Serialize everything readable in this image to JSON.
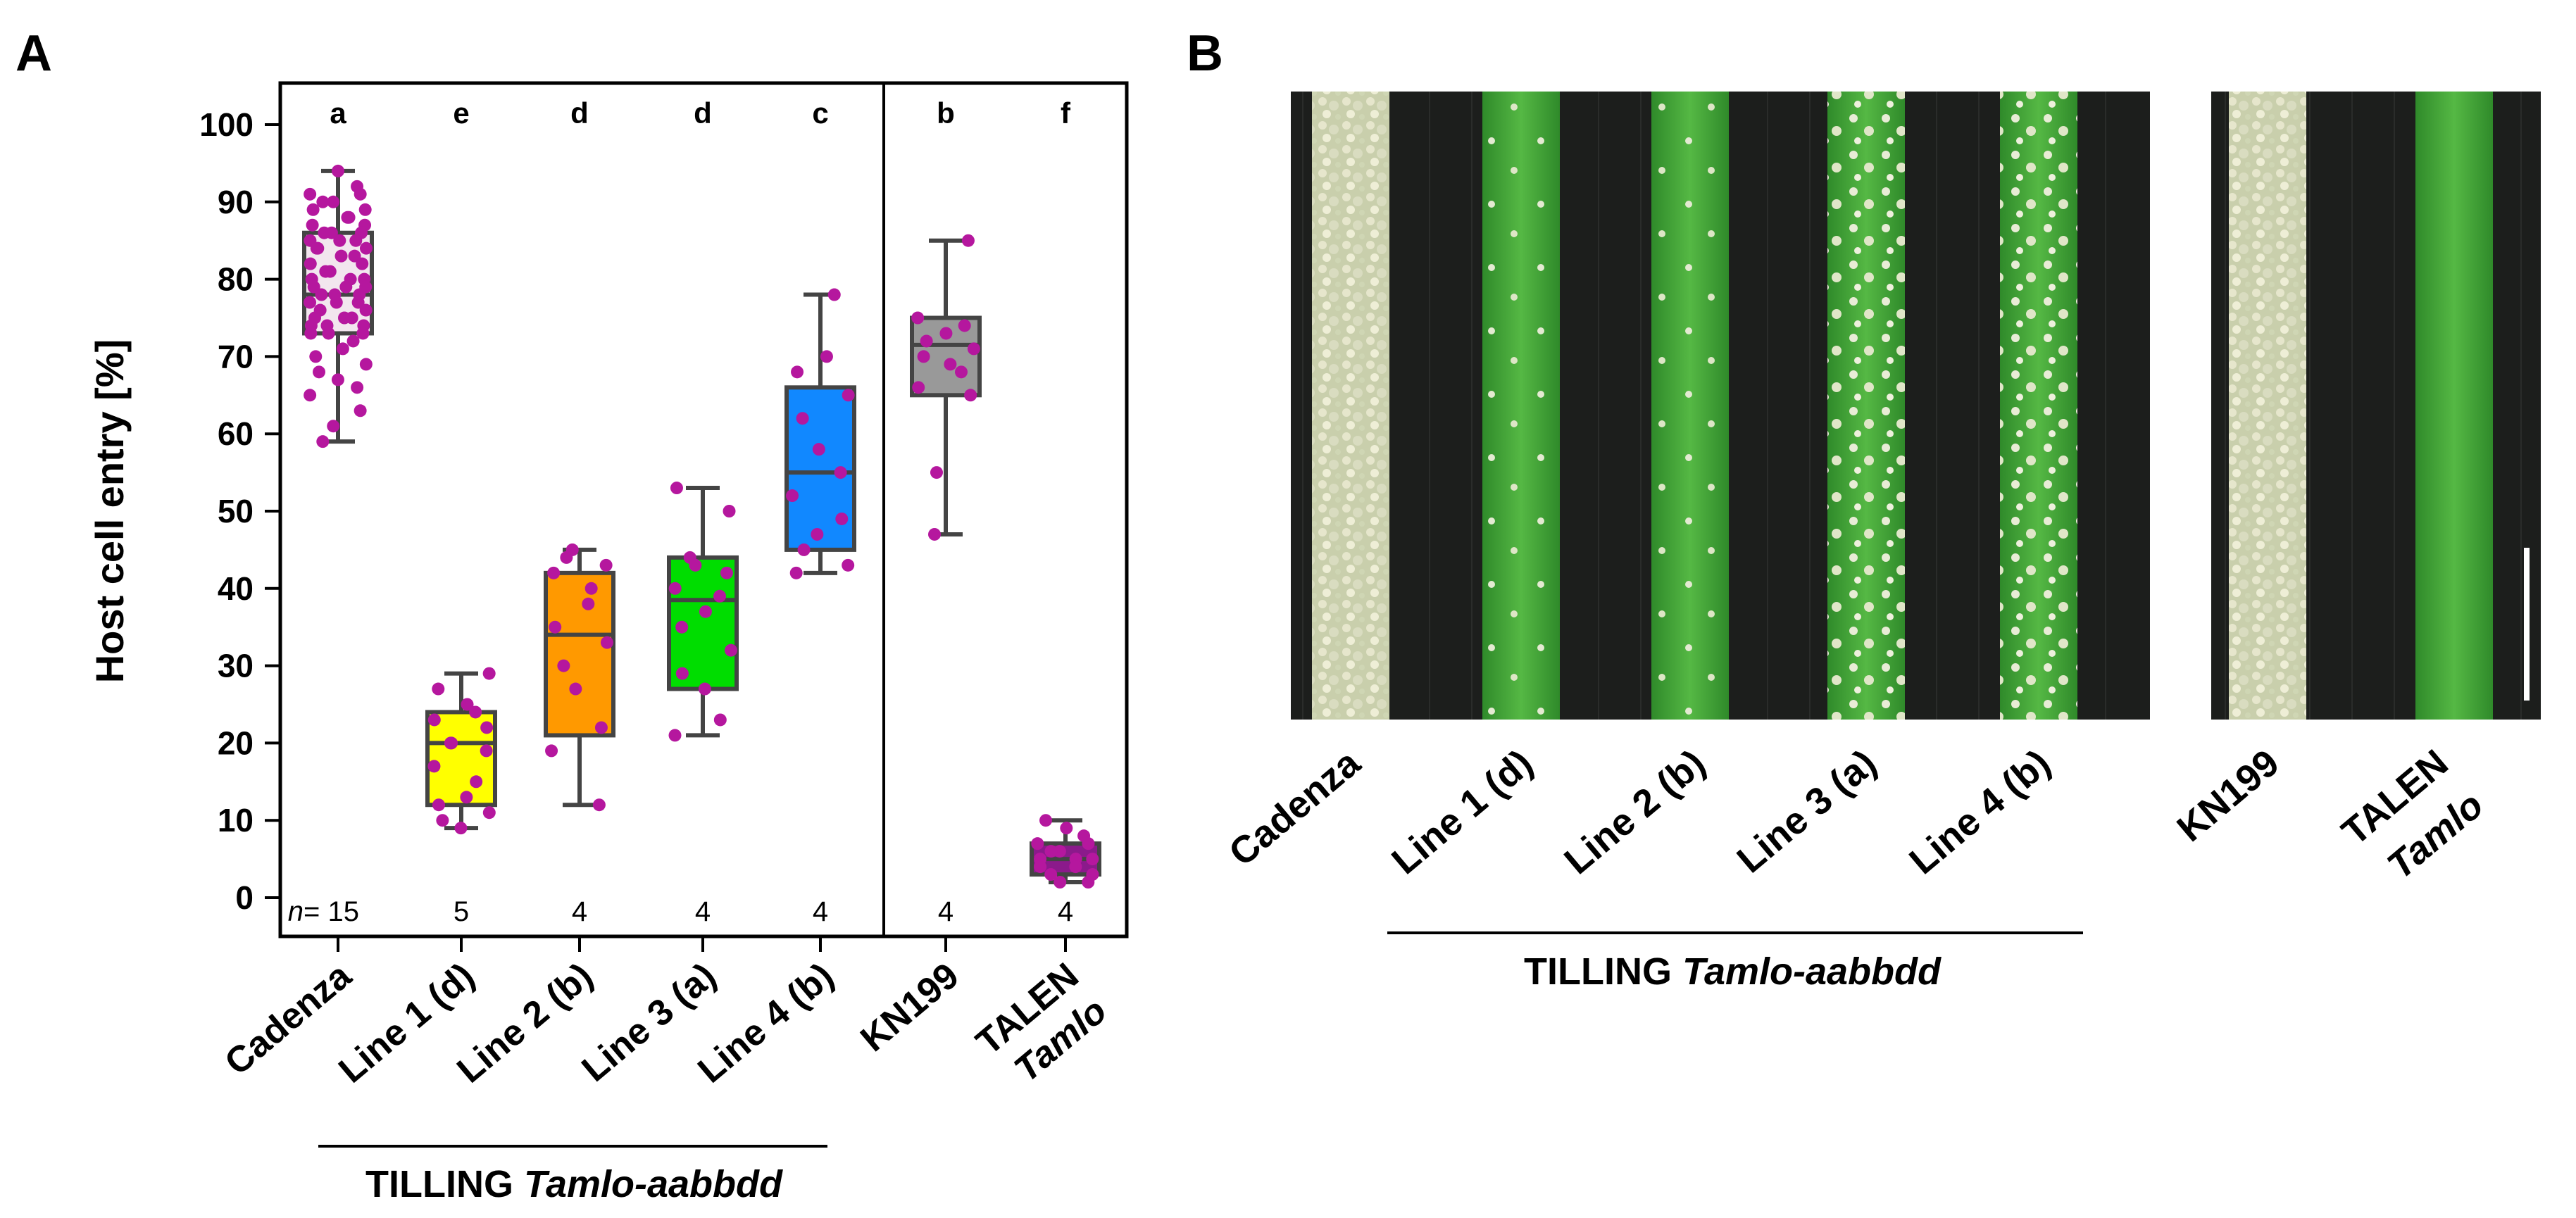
{
  "panels": {
    "a": {
      "label": "A"
    },
    "b": {
      "label": "B"
    }
  },
  "chart_data": {
    "type": "box",
    "ylabel": "Host cell entry [%]",
    "ylim": [
      0,
      100
    ],
    "yticks": [
      0,
      10,
      20,
      30,
      40,
      50,
      60,
      70,
      80,
      90,
      100
    ],
    "n_prefix": "n",
    "n_eq": "= ",
    "groups": [
      {
        "name": "Cadenza",
        "name_italic": "",
        "letter": "a",
        "n": "15",
        "color": "#f2e6ee",
        "whisker_low": 59,
        "q1": 73,
        "median": 78,
        "q3": 86,
        "whisker_high": 94,
        "points": [
          94,
          92,
          91,
          91,
          90,
          90,
          89,
          89,
          88,
          88,
          87,
          87,
          86,
          86,
          86,
          85,
          85,
          85,
          84,
          84,
          84,
          83,
          83,
          82,
          82,
          81,
          81,
          80,
          80,
          80,
          79,
          79,
          79,
          78,
          78,
          78,
          77,
          77,
          77,
          76,
          76,
          75,
          75,
          75,
          74,
          74,
          74,
          73,
          73,
          73,
          72,
          71,
          70,
          69,
          68,
          67,
          66,
          65,
          63,
          61,
          59
        ]
      },
      {
        "name": "Line 1 (d)",
        "name_italic": "",
        "letter": "e",
        "n": "5",
        "color": "#ffff00",
        "whisker_low": 9,
        "q1": 12,
        "median": 20,
        "q3": 24,
        "whisker_high": 29,
        "points": [
          29,
          27,
          25,
          24,
          23,
          22,
          20,
          20,
          19,
          17,
          15,
          13,
          12,
          11,
          10,
          9
        ]
      },
      {
        "name": "Line 2 (b)",
        "name_italic": "",
        "letter": "d",
        "n": "4",
        "color": "#ff9900",
        "whisker_low": 12,
        "q1": 21,
        "median": 34,
        "q3": 42,
        "whisker_high": 45,
        "points": [
          45,
          44,
          43,
          42,
          40,
          38,
          35,
          33,
          30,
          27,
          22,
          19,
          12
        ]
      },
      {
        "name": "Line 3 (a)",
        "name_italic": "",
        "letter": "d",
        "n": "4",
        "color": "#00dd00",
        "whisker_low": 21,
        "q1": 27,
        "median": 38.5,
        "q3": 44,
        "whisker_high": 53,
        "points": [
          53,
          50,
          44,
          43,
          42,
          40,
          39,
          37,
          35,
          32,
          29,
          27,
          23,
          21
        ]
      },
      {
        "name": "Line 4 (b)",
        "name_italic": "",
        "letter": "c",
        "n": "4",
        "color": "#1188ff",
        "whisker_low": 42,
        "q1": 45,
        "median": 55,
        "q3": 66,
        "whisker_high": 78,
        "points": [
          78,
          70,
          68,
          65,
          62,
          58,
          55,
          52,
          49,
          47,
          45,
          43,
          42
        ]
      },
      {
        "name": "KN199",
        "name_italic": "",
        "letter": "b",
        "n": "4",
        "color": "#999999",
        "whisker_low": 47,
        "q1": 65,
        "median": 71.5,
        "q3": 75,
        "whisker_high": 85,
        "points": [
          85,
          75,
          74,
          73,
          72,
          71,
          70,
          69,
          68,
          66,
          65,
          55,
          47
        ]
      },
      {
        "name": "TALEN",
        "name_italic": "Tamlo",
        "letter": "f",
        "n": "4",
        "color": "#8b1a8b",
        "whisker_low": 2,
        "q1": 3,
        "median": 5,
        "q3": 7,
        "whisker_high": 10,
        "points": [
          10,
          9,
          8,
          7,
          7,
          6,
          6,
          5,
          5,
          5,
          4,
          4,
          3,
          3,
          2,
          2
        ]
      }
    ],
    "point_color": "#b5179e",
    "bracket_label": "TILLING ",
    "bracket_label_italic": "Tamlo-aabbdd"
  },
  "photo": {
    "labels": [
      "Cadenza",
      "Line 1 (d)",
      "Line 2 (b)",
      "Line 3 (a)",
      "Line 4 (b)",
      "KN199",
      "TALEN"
    ],
    "talen_italic": "Tamlo",
    "bracket_label": "TILLING ",
    "bracket_label_italic": "Tamlo-aabbdd",
    "leaf_types": [
      "covered",
      "green",
      "green",
      "spotted",
      "spotted",
      "covered",
      "clean"
    ]
  }
}
